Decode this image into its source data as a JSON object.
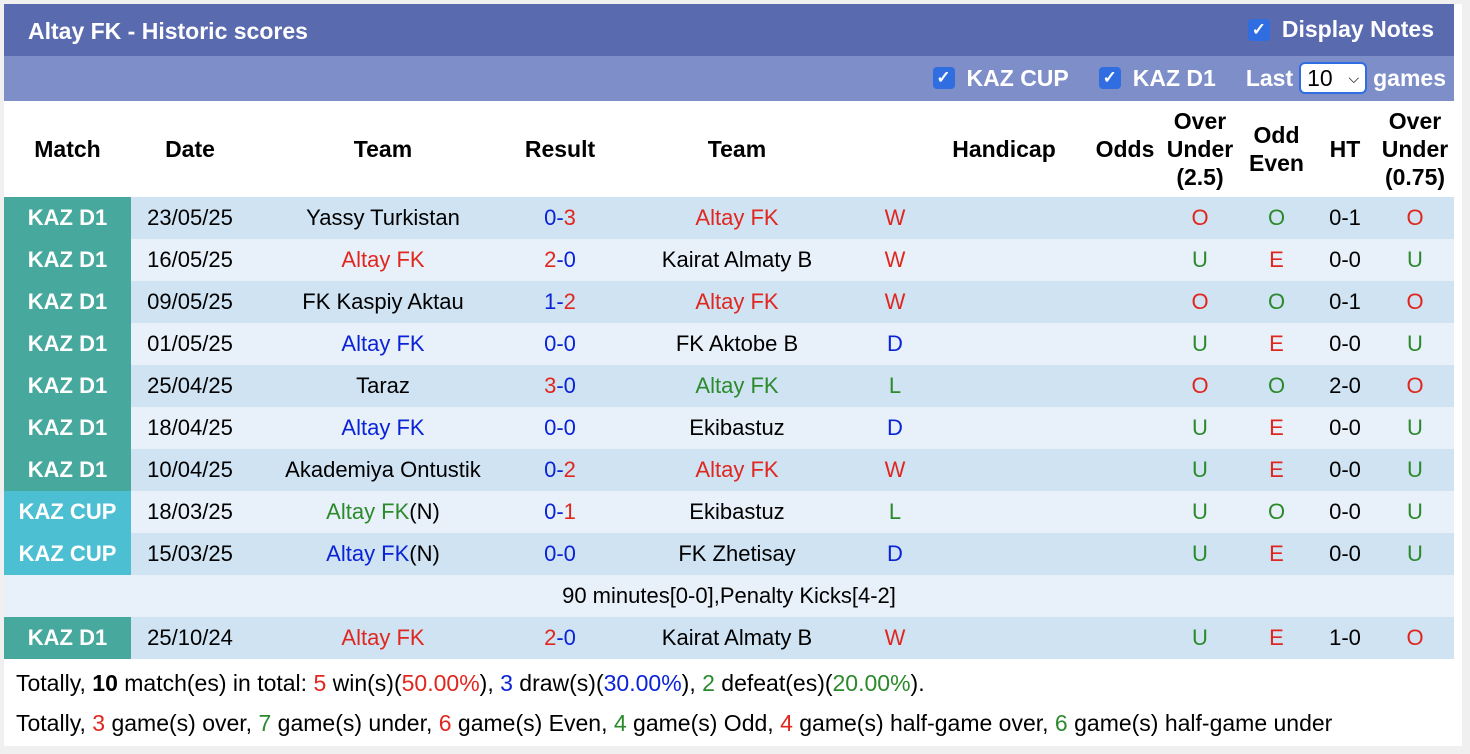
{
  "header": {
    "title": "Altay FK - Historic scores",
    "display_notes": "Display Notes",
    "filters": [
      {
        "label": "KAZ CUP"
      },
      {
        "label": "KAZ D1"
      }
    ],
    "last_label": "Last",
    "games_value": "10",
    "games_label": "games"
  },
  "columns": [
    "Match",
    "Date",
    "Team",
    "Result",
    "Team",
    "Handicap",
    "Odds",
    "Over Under (2.5)",
    "Odd Even",
    "HT",
    "Over Under (0.75)"
  ],
  "rows": [
    {
      "league": "KAZ D1",
      "date": "23/05/25",
      "home": "Yassy Turkistan",
      "hs": "0",
      "as": "3",
      "away": "Altay FK",
      "wl": "W",
      "ou": "O",
      "oe": "O",
      "ht": "0-1",
      "ou2": "O"
    },
    {
      "league": "KAZ D1",
      "date": "16/05/25",
      "home": "Altay FK",
      "hs": "2",
      "as": "0",
      "away": "Kairat Almaty B",
      "wl": "W",
      "ou": "U",
      "oe": "E",
      "ht": "0-0",
      "ou2": "U"
    },
    {
      "league": "KAZ D1",
      "date": "09/05/25",
      "home": "FK Kaspiy Aktau",
      "hs": "1",
      "as": "2",
      "away": "Altay FK",
      "wl": "W",
      "ou": "O",
      "oe": "O",
      "ht": "0-1",
      "ou2": "O"
    },
    {
      "league": "KAZ D1",
      "date": "01/05/25",
      "home": "Altay FK",
      "hs": "0",
      "as": "0",
      "away": "FK Aktobe B",
      "wl": "D",
      "ou": "U",
      "oe": "E",
      "ht": "0-0",
      "ou2": "U"
    },
    {
      "league": "KAZ D1",
      "date": "25/04/25",
      "home": "Taraz",
      "hs": "3",
      "as": "0",
      "away": "Altay FK",
      "wl": "L",
      "ou": "O",
      "oe": "O",
      "ht": "2-0",
      "ou2": "O"
    },
    {
      "league": "KAZ D1",
      "date": "18/04/25",
      "home": "Altay FK",
      "hs": "0",
      "as": "0",
      "away": "Ekibastuz",
      "wl": "D",
      "ou": "U",
      "oe": "E",
      "ht": "0-0",
      "ou2": "U"
    },
    {
      "league": "KAZ D1",
      "date": "10/04/25",
      "home": "Akademiya Ontustik",
      "hs": "0",
      "as": "2",
      "away": "Altay FK",
      "wl": "W",
      "ou": "U",
      "oe": "E",
      "ht": "0-0",
      "ou2": "U"
    },
    {
      "league": "KAZ CUP",
      "date": "18/03/25",
      "home": "Altay FK",
      "home_suffix": "(N)",
      "hs": "0",
      "as": "1",
      "away": "Ekibastuz",
      "wl": "L",
      "ou": "U",
      "oe": "O",
      "ht": "0-0",
      "ou2": "U"
    },
    {
      "league": "KAZ CUP",
      "date": "15/03/25",
      "home": "Altay FK",
      "home_suffix": "(N)",
      "hs": "0",
      "as": "0",
      "away": "FK Zhetisay",
      "wl": "D",
      "ou": "U",
      "oe": "E",
      "ht": "0-0",
      "ou2": "U",
      "note": "90 minutes[0-0],Penalty Kicks[4-2]"
    },
    {
      "league": "KAZ D1",
      "date": "25/10/24",
      "home": "Altay FK",
      "hs": "2",
      "as": "0",
      "away": "Kairat Almaty B",
      "wl": "W",
      "ou": "U",
      "oe": "E",
      "ht": "1-0",
      "ou2": "O"
    }
  ],
  "summary": {
    "line1": {
      "p1": "Totally, ",
      "total": "10",
      "p2": " match(es) in total: ",
      "wins": "5",
      "p3": " win(s)(",
      "win_pct": "50.00%",
      "p4": "), ",
      "draws": "3",
      "p5": " draw(s)(",
      "draw_pct": "30.00%",
      "p6": "), ",
      "defeats": "2",
      "p7": " defeat(es)(",
      "defeat_pct": "20.00%",
      "p8": ")."
    },
    "line2": {
      "p1": "Totally, ",
      "over": "3",
      "p2": " game(s) over, ",
      "under": "7",
      "p3": " game(s) under, ",
      "even": "6",
      "p4": " game(s) Even, ",
      "odd": "4",
      "p5": " game(s) Odd, ",
      "hg_over": "4",
      "p6": " game(s) half-game over, ",
      "hg_under": "6",
      "p7": " game(s) half-game under"
    }
  },
  "colors": {
    "win": "#e0271f",
    "draw": "#0a23d6",
    "loss": "#2c8a2c",
    "d1": "#47a89d",
    "cup": "#4dbfd2"
  }
}
